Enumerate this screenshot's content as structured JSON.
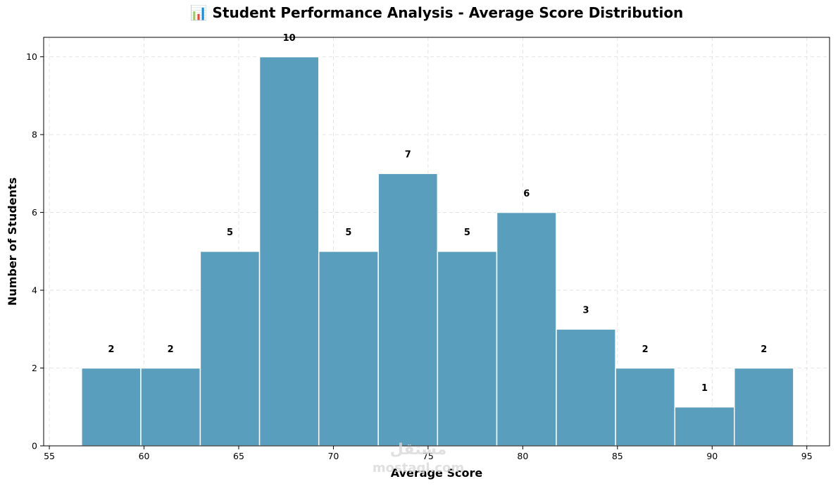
{
  "chart_data": {
    "type": "bar",
    "title": "📊 Student Performance Analysis - Average Score Distribution",
    "xlabel": "Average Score",
    "ylabel": "Number of Students",
    "xlim": [
      54.7,
      96.2
    ],
    "ylim": [
      0,
      10.5
    ],
    "xticks": [
      55,
      60,
      65,
      70,
      75,
      80,
      85,
      90,
      95
    ],
    "yticks": [
      0,
      2,
      4,
      6,
      8,
      10
    ],
    "grid": true,
    "bin_edges": [
      56.7,
      59.83,
      62.97,
      66.1,
      69.23,
      72.37,
      75.5,
      78.63,
      81.77,
      84.9,
      88.03,
      91.17,
      94.3
    ],
    "values": [
      2,
      2,
      5,
      10,
      5,
      7,
      5,
      6,
      3,
      2,
      1,
      2
    ],
    "bar_color": "#5a9ebe",
    "edge_color": "#ffffff"
  },
  "watermark": {
    "line1": "مستقل",
    "line2": "mostaql.com"
  }
}
